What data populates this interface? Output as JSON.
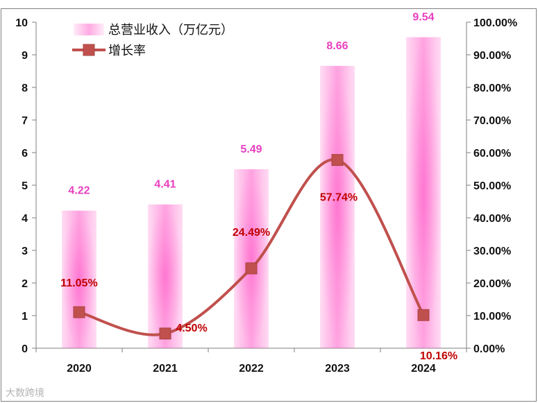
{
  "chart_data": {
    "type": "bar+line",
    "categories": [
      "2020",
      "2021",
      "2022",
      "2023",
      "2024"
    ],
    "series": [
      {
        "name": "总营业收入（万亿元）",
        "type": "bar",
        "axis": "left",
        "values": [
          4.22,
          4.41,
          5.49,
          8.66,
          9.54
        ],
        "labels": [
          "4.22",
          "4.41",
          "5.49",
          "8.66",
          "9.54"
        ]
      },
      {
        "name": "增长率",
        "type": "line",
        "axis": "right",
        "values": [
          11.05,
          4.5,
          24.49,
          57.74,
          10.16
        ],
        "labels": [
          "11.05%",
          "4.50%",
          "24.49%",
          "57.74%",
          "10.16%"
        ]
      }
    ],
    "y_left": {
      "min": 0,
      "max": 10,
      "ticks": [
        "0",
        "1",
        "2",
        "3",
        "4",
        "5",
        "6",
        "7",
        "8",
        "9",
        "10"
      ]
    },
    "y_right": {
      "min": 0,
      "max": 100,
      "ticks": [
        "0.00%",
        "10.00%",
        "20.00%",
        "30.00%",
        "40.00%",
        "50.00%",
        "60.00%",
        "70.00%",
        "80.00%",
        "90.00%",
        "100.00%"
      ]
    },
    "legend": {
      "placement": "top-left",
      "bar_label": "总营业收入（万亿元）",
      "line_label": "增长率"
    },
    "colors": {
      "bar": "#ff66cc",
      "bar_label": "#e83fc0",
      "line": "#c0504d",
      "rate_label": "#c00000",
      "axis": "#7f7f7f"
    },
    "grid": false
  },
  "watermark": "大数跨境"
}
